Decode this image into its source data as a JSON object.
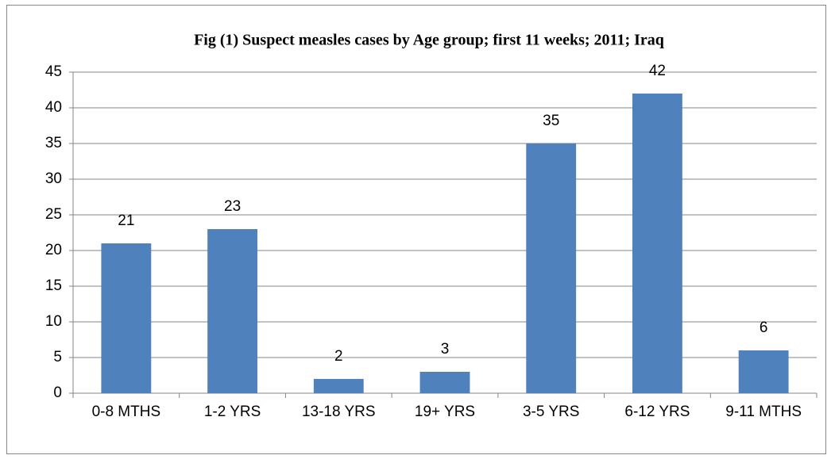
{
  "chart_data": {
    "type": "bar",
    "title": "Fig (1) Suspect measles cases by Age group;  first 11 weeks; 2011; Iraq",
    "categories": [
      "0-8 MTHS",
      "1-2 YRS",
      "13-18 YRS",
      "19+ YRS",
      "3-5 YRS",
      "6-12 YRS",
      "9-11 MTHS"
    ],
    "values": [
      21,
      23,
      2,
      3,
      35,
      42,
      6
    ],
    "color": "#4f81bd",
    "ylim": [
      0,
      45
    ],
    "yticks": [
      0,
      5,
      10,
      15,
      20,
      25,
      30,
      35,
      40,
      45
    ],
    "grid": true
  }
}
